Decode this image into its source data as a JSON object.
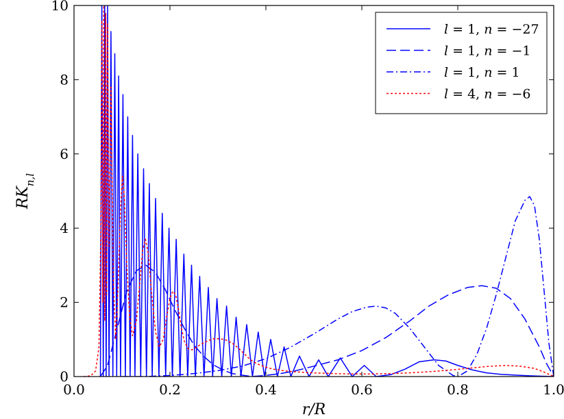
{
  "chart_data": {
    "type": "line",
    "xlabel": "r/R",
    "ylabel": "RK_{n,l}",
    "xlim": [
      0.0,
      1.0
    ],
    "ylim": [
      0,
      10
    ],
    "xticks": [
      0.0,
      0.2,
      0.4,
      0.6,
      0.8,
      1.0
    ],
    "xtick_labels": [
      "0.0",
      "0.2",
      "0.4",
      "0.6",
      "0.8",
      "1.0"
    ],
    "yticks": [
      0,
      2,
      4,
      6,
      8,
      10
    ],
    "ytick_labels": [
      "0",
      "2",
      "4",
      "6",
      "8",
      "10"
    ],
    "grid": false,
    "legend_position": "top-right",
    "series": [
      {
        "name": "l = 1, n = −27",
        "color": "#0000ff",
        "style": "solid",
        "x": [
          0.055,
          0.058,
          0.061,
          0.064,
          0.067,
          0.07,
          0.073,
          0.077,
          0.081,
          0.085,
          0.089,
          0.093,
          0.097,
          0.102,
          0.107,
          0.112,
          0.117,
          0.122,
          0.127,
          0.133,
          0.139,
          0.145,
          0.151,
          0.157,
          0.163,
          0.17,
          0.177,
          0.184,
          0.191,
          0.198,
          0.205,
          0.213,
          0.221,
          0.229,
          0.237,
          0.245,
          0.253,
          0.262,
          0.271,
          0.28,
          0.289,
          0.298,
          0.308,
          0.318,
          0.328,
          0.338,
          0.348,
          0.36,
          0.372,
          0.384,
          0.397,
          0.41,
          0.424,
          0.438,
          0.452,
          0.47,
          0.49,
          0.51,
          0.53,
          0.555,
          0.58,
          0.605,
          0.63,
          0.66,
          0.69,
          0.72,
          0.75,
          0.775,
          0.8,
          0.83,
          0.86,
          0.89,
          0.92,
          0.95,
          0.975,
          1.0
        ],
        "y": [
          0.0,
          10.0,
          0.0,
          10.0,
          0.0,
          10.0,
          0.0,
          9.3,
          0.0,
          8.7,
          0.0,
          8.1,
          0.0,
          7.6,
          0.0,
          7.0,
          0.0,
          6.5,
          0.0,
          6.0,
          0.0,
          5.6,
          0.0,
          5.2,
          0.0,
          4.8,
          0.0,
          4.4,
          0.0,
          4.0,
          0.0,
          3.7,
          0.0,
          3.3,
          0.0,
          3.0,
          0.0,
          2.7,
          0.0,
          2.4,
          0.0,
          2.1,
          0.0,
          1.9,
          0.0,
          1.6,
          0.0,
          1.4,
          0.0,
          1.2,
          0.0,
          1.0,
          0.0,
          0.8,
          0.0,
          0.55,
          0.0,
          0.45,
          0.0,
          0.5,
          0.0,
          0.3,
          0.0,
          0.05,
          0.2,
          0.4,
          0.45,
          0.42,
          0.3,
          0.18,
          0.1,
          0.06,
          0.04,
          0.02,
          0.01,
          0.0
        ]
      },
      {
        "name": "l = 1, n = −1",
        "color": "#0000ff",
        "style": "dashed",
        "x": [
          0.055,
          0.07,
          0.09,
          0.11,
          0.13,
          0.15,
          0.17,
          0.19,
          0.21,
          0.23,
          0.25,
          0.27,
          0.29,
          0.31,
          0.33,
          0.35,
          0.37,
          0.4,
          0.43,
          0.46,
          0.5,
          0.55,
          0.6,
          0.65,
          0.7,
          0.74,
          0.78,
          0.82,
          0.85,
          0.88,
          0.91,
          0.94,
          0.97,
          0.985,
          1.0
        ],
        "y": [
          0.0,
          0.3,
          1.3,
          2.3,
          2.85,
          3.0,
          2.8,
          2.35,
          1.8,
          1.3,
          0.85,
          0.55,
          0.32,
          0.18,
          0.08,
          0.04,
          0.0,
          0.03,
          0.08,
          0.15,
          0.28,
          0.45,
          0.7,
          1.05,
          1.5,
          1.9,
          2.2,
          2.4,
          2.45,
          2.38,
          2.1,
          1.55,
          0.8,
          0.35,
          0.0
        ]
      },
      {
        "name": "l = 1, n = 1",
        "color": "#0000ff",
        "style": "dashdot",
        "x": [
          0.1,
          0.15,
          0.2,
          0.25,
          0.3,
          0.35,
          0.4,
          0.45,
          0.5,
          0.55,
          0.58,
          0.61,
          0.63,
          0.65,
          0.67,
          0.7,
          0.73,
          0.76,
          0.79,
          0.8,
          0.82,
          0.84,
          0.86,
          0.88,
          0.9,
          0.92,
          0.94,
          0.95,
          0.96,
          0.97,
          0.98,
          0.99,
          1.0
        ],
        "y": [
          0.0,
          0.0,
          0.03,
          0.08,
          0.16,
          0.28,
          0.48,
          0.78,
          1.15,
          1.55,
          1.75,
          1.87,
          1.9,
          1.85,
          1.7,
          1.3,
          0.8,
          0.3,
          0.03,
          0.0,
          0.15,
          0.6,
          1.3,
          2.2,
          3.2,
          4.2,
          4.75,
          4.85,
          4.6,
          3.7,
          2.3,
          0.9,
          0.0
        ]
      },
      {
        "name": "l = 4, n = −6",
        "color": "#ff0000",
        "style": "dotted",
        "x": [
          0.02,
          0.035,
          0.045,
          0.052,
          0.056,
          0.058,
          0.06,
          0.062,
          0.064,
          0.066,
          0.068,
          0.07,
          0.073,
          0.077,
          0.082,
          0.087,
          0.092,
          0.097,
          0.101,
          0.105,
          0.11,
          0.116,
          0.122,
          0.13,
          0.137,
          0.143,
          0.149,
          0.155,
          0.162,
          0.17,
          0.178,
          0.186,
          0.193,
          0.2,
          0.206,
          0.212,
          0.218,
          0.224,
          0.23,
          0.238,
          0.246,
          0.254,
          0.262,
          0.272,
          0.282,
          0.292,
          0.304,
          0.318,
          0.332,
          0.344,
          0.356,
          0.368,
          0.382,
          0.398,
          0.415,
          0.44,
          0.47,
          0.5,
          0.54,
          0.58,
          0.62,
          0.66,
          0.7,
          0.74,
          0.78,
          0.82,
          0.86,
          0.9,
          0.93,
          0.96,
          0.98,
          1.0
        ],
        "y": [
          0.0,
          0.02,
          0.15,
          0.8,
          4.0,
          9.6,
          2.0,
          10.0,
          1.5,
          9.8,
          2.2,
          9.5,
          3.5,
          7.8,
          2.5,
          1.0,
          2.5,
          4.5,
          5.4,
          4.8,
          3.0,
          1.6,
          1.1,
          1.5,
          2.5,
          3.4,
          3.7,
          3.3,
          2.2,
          1.2,
          0.8,
          1.0,
          1.6,
          2.1,
          2.3,
          2.2,
          1.8,
          1.3,
          0.95,
          0.75,
          0.72,
          0.78,
          0.85,
          0.92,
          0.98,
          1.02,
          1.02,
          0.98,
          0.88,
          0.75,
          0.6,
          0.45,
          0.34,
          0.26,
          0.2,
          0.15,
          0.12,
          0.1,
          0.08,
          0.07,
          0.07,
          0.08,
          0.1,
          0.13,
          0.17,
          0.22,
          0.27,
          0.3,
          0.28,
          0.22,
          0.12,
          0.0
        ]
      }
    ]
  }
}
